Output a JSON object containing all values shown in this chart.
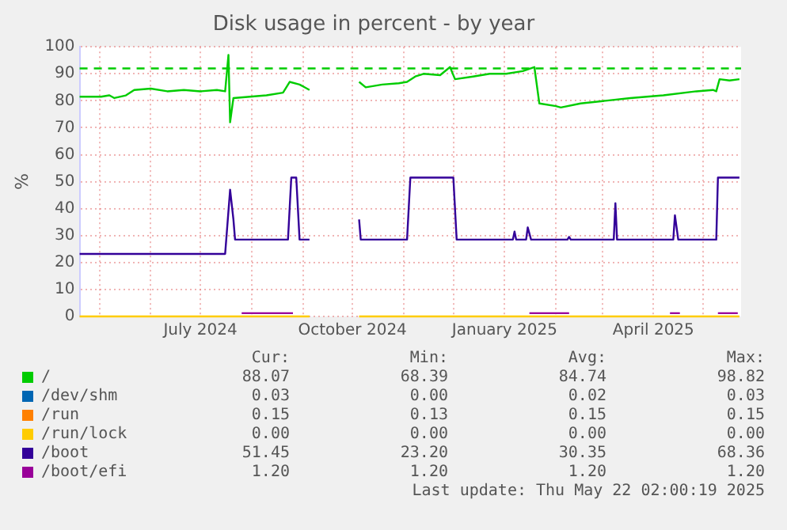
{
  "chart_data": {
    "type": "line",
    "title": "Disk usage in percent - by year",
    "ylabel": "%",
    "xlim": [
      "2024-04-19",
      "2025-05-24"
    ],
    "ylim": [
      0,
      100
    ],
    "xticks": [
      {
        "value": "2024-05-01",
        "label": null
      },
      {
        "value": "2024-06-01",
        "label": null
      },
      {
        "value": "2024-07-01",
        "label": "July 2024"
      },
      {
        "value": "2024-08-01",
        "label": null
      },
      {
        "value": "2024-09-01",
        "label": null
      },
      {
        "value": "2024-10-01",
        "label": "October 2024"
      },
      {
        "value": "2024-11-01",
        "label": null
      },
      {
        "value": "2024-12-01",
        "label": null
      },
      {
        "value": "2025-01-01",
        "label": "January 2025"
      },
      {
        "value": "2025-02-01",
        "label": null
      },
      {
        "value": "2025-03-01",
        "label": null
      },
      {
        "value": "2025-04-01",
        "label": "April 2025"
      },
      {
        "value": "2025-05-01",
        "label": null
      }
    ],
    "yticks": [
      0,
      10,
      20,
      30,
      40,
      50,
      60,
      70,
      80,
      90,
      100
    ],
    "grid": true,
    "legend": "bottom",
    "marker": "none",
    "line_style": "solid",
    "ref_lines": [
      {
        "axis": "y",
        "value": 92,
        "color": "#00cc00",
        "line_style": "dashed"
      }
    ],
    "series": [
      {
        "name": "/",
        "color": "#00cc00",
        "x": [
          "2024-04-19",
          "2024-05-02",
          "2024-05-07",
          "2024-05-10",
          "2024-05-17",
          "2024-05-22",
          "2024-06-01",
          "2024-06-11",
          "2024-06-21",
          "2024-07-01",
          "2024-07-11",
          "2024-07-16",
          "2024-07-18",
          "2024-07-19",
          "2024-07-21",
          "2024-07-31",
          "2024-08-10",
          "2024-08-20",
          "2024-08-24",
          "2024-08-30",
          "2024-09-02",
          "2024-09-05",
          "2024-09-20",
          "2024-10-05",
          "2024-10-09",
          "2024-10-19",
          "2024-10-29",
          "2024-11-03",
          "2024-11-08",
          "2024-11-13",
          "2024-11-23",
          "2024-11-29",
          "2024-12-02",
          "2024-12-13",
          "2024-12-23",
          "2025-01-02",
          "2025-01-12",
          "2025-01-19",
          "2025-01-22",
          "2025-02-01",
          "2025-02-04",
          "2025-02-16",
          "2025-03-03",
          "2025-03-18",
          "2025-04-07",
          "2025-04-27",
          "2025-05-07",
          "2025-05-09",
          "2025-05-11",
          "2025-05-17",
          "2025-05-23"
        ],
        "values": [
          81.5,
          81.5,
          82,
          81,
          82,
          84,
          84.5,
          83.5,
          84,
          83.5,
          84,
          83.5,
          97,
          72,
          81,
          81.5,
          82,
          83,
          87,
          86,
          85,
          84,
          null,
          87,
          85,
          86,
          86.5,
          87,
          89,
          90,
          89.5,
          92.5,
          88,
          89,
          90,
          90,
          91,
          92.5,
          79,
          78,
          77.5,
          79,
          80,
          81,
          82,
          83.5,
          84,
          83.5,
          88,
          87.5,
          88
        ]
      },
      {
        "name": "/dev/shm",
        "color": "#0066b3"
      },
      {
        "name": "/run",
        "color": "#ff8000"
      },
      {
        "name": "/run/lock",
        "color": "#ffcc00",
        "x": [
          "2024-04-19",
          "2024-09-05",
          "2024-09-20",
          "2024-10-05",
          "2025-05-23"
        ],
        "values": [
          0,
          0,
          null,
          0,
          0
        ]
      },
      {
        "name": "/boot",
        "color": "#330099",
        "x": [
          "2024-04-19",
          "2024-07-16",
          "2024-07-19",
          "2024-07-21",
          "2024-07-22",
          "2024-08-23",
          "2024-08-25",
          "2024-08-28",
          "2024-08-30",
          "2024-09-05",
          "2024-09-20",
          "2024-10-05",
          "2024-10-06",
          "2024-11-03",
          "2024-11-05",
          "2024-12-01",
          "2024-12-03",
          "2025-01-06",
          "2025-01-07",
          "2025-01-08",
          "2025-01-14",
          "2025-01-15",
          "2025-01-17",
          "2025-02-08",
          "2025-02-09",
          "2025-02-10",
          "2025-03-08",
          "2025-03-09",
          "2025-03-10",
          "2025-04-13",
          "2025-04-14",
          "2025-04-16",
          "2025-05-09",
          "2025-05-10",
          "2025-05-23"
        ],
        "values": [
          23.2,
          23.2,
          47,
          36,
          28.5,
          28.5,
          51.5,
          51.5,
          28.5,
          28.5,
          null,
          36,
          28.5,
          28.5,
          51.5,
          51.5,
          28.5,
          28.5,
          31.5,
          28.5,
          28.5,
          33,
          28.5,
          28.5,
          29.5,
          28.5,
          28.5,
          42,
          28.5,
          28.5,
          37.5,
          28.5,
          28.5,
          51.5,
          51.5
        ]
      },
      {
        "name": "/boot/efi",
        "color": "#990099",
        "x": [
          "2024-07-26",
          "2024-08-26",
          "2024-10-01",
          "2025-01-16",
          "2025-02-09",
          "2025-03-01",
          "2025-04-11",
          "2025-04-17",
          "2025-04-25",
          "2025-05-10",
          "2025-05-22"
        ],
        "values": [
          1.2,
          1.2,
          null,
          1.2,
          1.2,
          null,
          1.2,
          1.2,
          null,
          1.2,
          1.2
        ]
      }
    ],
    "annotations": [
      "Cur:",
      "Min:",
      "Avg:",
      "Max:",
      "88.07",
      "68.39",
      "84.74",
      "98.82",
      "0.03",
      "0.00",
      "0.02",
      "0.03",
      "0.15",
      "0.13",
      "0.15",
      "0.15",
      "0.00",
      "0.00",
      "0.00",
      "0.00",
      "51.45",
      "23.20",
      "30.35",
      "68.36",
      "1.20",
      "1.20",
      "1.20",
      "1.20",
      "Last update: Thu May 22 02:00:19 2025"
    ]
  }
}
